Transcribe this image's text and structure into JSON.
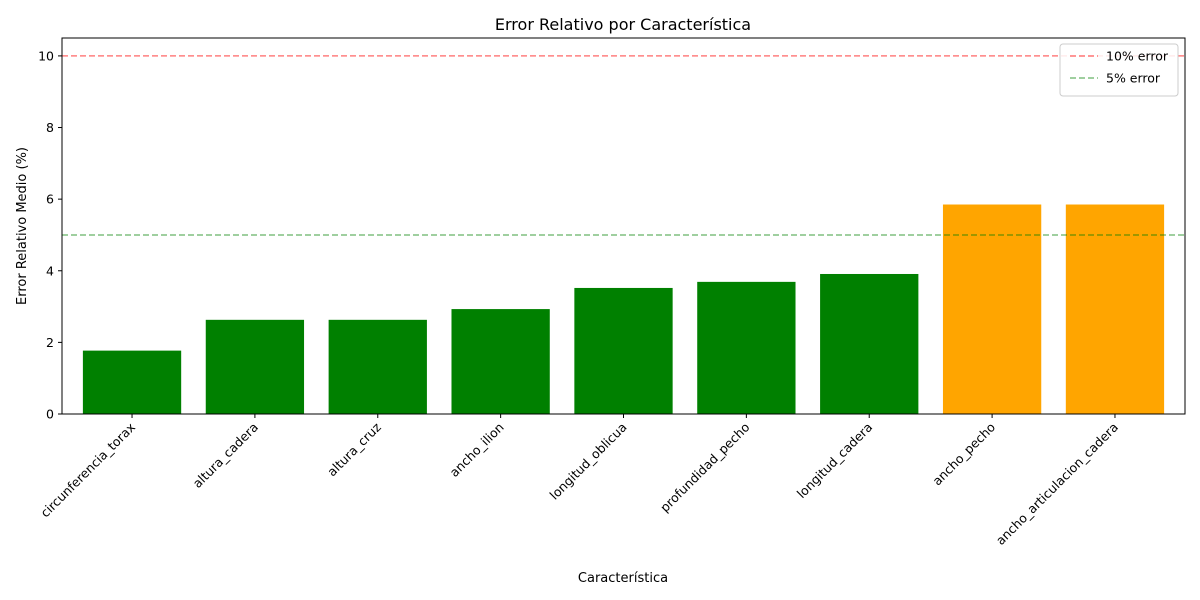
{
  "chart_data": {
    "type": "bar",
    "title": "Error Relativo por Característica",
    "xlabel": "Característica",
    "ylabel": "Error Relativo Medio (%)",
    "categories": [
      "circunferencia_torax",
      "altura_cadera",
      "altura_cruz",
      "ancho_ilion",
      "longitud_oblicua",
      "profundidad_pecho",
      "longitud_cadera",
      "ancho_pecho",
      "ancho_articulacion_cadera"
    ],
    "values": [
      1.77,
      2.63,
      2.63,
      2.93,
      3.52,
      3.69,
      3.91,
      5.85,
      5.85
    ],
    "bar_colors": [
      "#008000",
      "#008000",
      "#008000",
      "#008000",
      "#008000",
      "#008000",
      "#008000",
      "#FFA500",
      "#FFA500"
    ],
    "ylim": [
      0,
      10.5
    ],
    "yticks": [
      0,
      2,
      4,
      6,
      8,
      10
    ],
    "grid": false,
    "reference_lines": [
      {
        "name": "10% error",
        "value": 10,
        "color": "#FF0000",
        "style": "dashed"
      },
      {
        "name": "5% error",
        "value": 5,
        "color": "#008000",
        "style": "dashed"
      }
    ],
    "legend_position": "top-right"
  }
}
